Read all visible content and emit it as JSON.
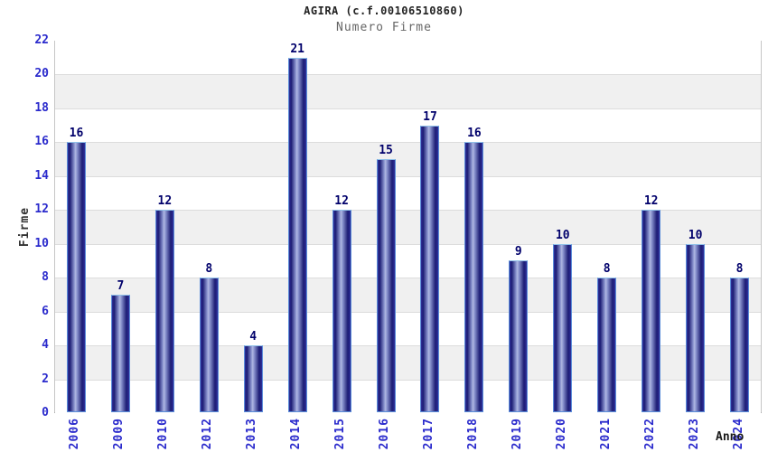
{
  "chart_data": {
    "type": "bar",
    "title": "AGIRA (c.f.00106510860)",
    "subtitle": "Numero Firme",
    "xlabel": "Anno",
    "ylabel": "Firme",
    "categories": [
      "2006",
      "2009",
      "2010",
      "2012",
      "2013",
      "2014",
      "2015",
      "2016",
      "2017",
      "2018",
      "2019",
      "2020",
      "2021",
      "2022",
      "2023",
      "2024"
    ],
    "values": [
      16,
      7,
      12,
      8,
      4,
      21,
      12,
      15,
      17,
      16,
      9,
      10,
      8,
      12,
      10,
      8
    ],
    "ylim": [
      0,
      22
    ],
    "ytick_step": 2,
    "yticks": [
      0,
      2,
      4,
      6,
      8,
      10,
      12,
      14,
      16,
      18,
      20,
      22
    ],
    "grid": "horizontal-bands-every-2-units",
    "legend": "none",
    "colors": {
      "tick_label": "#2a2acc",
      "value_label": "#00006b",
      "title": "#222222",
      "subtitle": "#666666",
      "band_gray": "#f0f0f0",
      "band_white": "#ffffff",
      "gridline": "#dcdcdc",
      "bar_edge_dark": "#30309a",
      "bar_dark": "#1c1c74",
      "bar_light": "#b0b8e2",
      "bar_mid_light": "#8a94cf",
      "bar_border": "#5b8dd9"
    }
  }
}
